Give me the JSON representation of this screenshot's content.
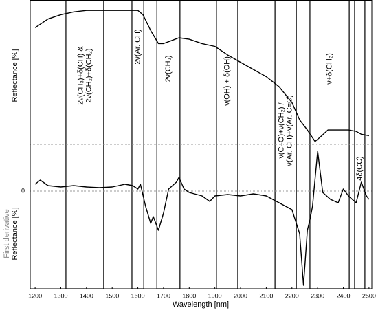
{
  "chart_data": [
    {
      "type": "line",
      "ylabel": "Reflectance [%]",
      "color": "#000000",
      "xlim": [
        1181,
        2511
      ],
      "ylim": [
        0,
        100
      ],
      "x": [
        1200,
        1250,
        1300,
        1350,
        1400,
        1450,
        1500,
        1550,
        1600,
        1620,
        1650,
        1680,
        1700,
        1730,
        1760,
        1800,
        1850,
        1900,
        1950,
        2000,
        2050,
        2100,
        2150,
        2200,
        2230,
        2260,
        2290,
        2310,
        2340,
        2380,
        2420,
        2450,
        2470,
        2500
      ],
      "values": [
        81,
        87,
        90,
        92,
        93,
        93,
        93,
        93,
        93,
        90,
        79,
        70,
        70,
        72,
        74,
        73,
        70,
        68,
        62,
        57,
        52,
        47,
        40,
        29,
        17,
        10,
        2,
        5,
        10,
        10,
        10,
        9,
        7,
        6
      ]
    },
    {
      "type": "line",
      "ylabel_note": "First derivative",
      "ylabel": "Reflectance [%]",
      "xlabel": "Wavelength [nm]",
      "color": "#000000",
      "xlim": [
        1181,
        2511
      ],
      "ylim": [
        -142,
        68
      ],
      "yticks": [
        0
      ],
      "xticks": [
        1200,
        1300,
        1400,
        1500,
        1600,
        1700,
        1800,
        1900,
        2000,
        2100,
        2200,
        2300,
        2400,
        2500
      ],
      "x": [
        1200,
        1220,
        1250,
        1300,
        1350,
        1400,
        1450,
        1500,
        1550,
        1580,
        1600,
        1610,
        1630,
        1650,
        1660,
        1680,
        1700,
        1720,
        1750,
        1760,
        1780,
        1800,
        1850,
        1880,
        1900,
        1950,
        2000,
        2050,
        2100,
        2150,
        2200,
        2230,
        2245,
        2260,
        2270,
        2280,
        2300,
        2320,
        2350,
        2380,
        2400,
        2420,
        2450,
        2470,
        2490,
        2500
      ],
      "values": [
        10,
        16,
        8,
        6,
        8,
        6,
        5,
        6,
        10,
        8,
        3,
        10,
        -22,
        -47,
        -37,
        -57,
        -32,
        3,
        13,
        20,
        3,
        -2,
        -7,
        -15,
        -7,
        -5,
        -7,
        -4,
        -7,
        -17,
        -27,
        -62,
        -137,
        -57,
        -42,
        -22,
        58,
        -2,
        -12,
        -17,
        3,
        -7,
        -17,
        13,
        -7,
        -12
      ]
    }
  ],
  "bands": [
    {
      "x": [
        1320,
        1467
      ],
      "label": [
        "2ν(CH₃)+δ(CH) &",
        "2ν(CH₂)+δ(CH₂)"
      ]
    },
    {
      "x": [
        1577,
        1623
      ],
      "label": [
        "2ν(Ar. CH)"
      ]
    },
    {
      "x": [
        1674,
        1764
      ],
      "label": [
        "2ν(CH₂)"
      ]
    },
    {
      "x": [
        1906,
        1989
      ],
      "label": [
        "ν(OH) + δ(OH)"
      ]
    },
    {
      "x": [
        2134,
        2217
      ],
      "label": [
        "ν(C=O)+ν(CH₂) /",
        "ν(Ar. CH)+ν(Ar. C=C)"
      ]
    },
    {
      "x": [
        2270,
        2423
      ],
      "label": [
        "ν+δ(CH₂)"
      ]
    },
    {
      "x": [
        2444,
        2484
      ],
      "label": [
        "4δ(CC)"
      ]
    }
  ]
}
